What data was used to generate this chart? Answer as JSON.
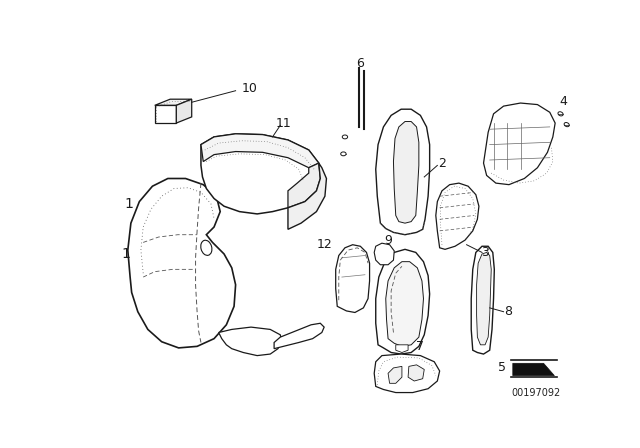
{
  "bg_color": "#ffffff",
  "line_color": "#1a1a1a",
  "dash_color": "#333333",
  "watermark": "00197092",
  "figsize": [
    6.4,
    4.48
  ],
  "dpi": 100
}
